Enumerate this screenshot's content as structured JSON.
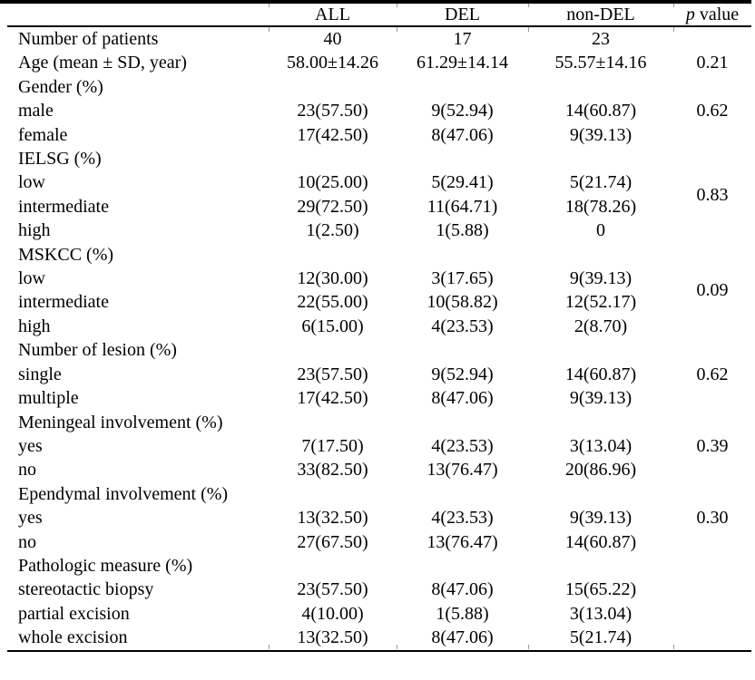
{
  "table": {
    "title_hint": "Patient characteristics table",
    "header": {
      "label": "",
      "all": "ALL",
      "del": "DEL",
      "nondel": "non-DEL",
      "p_symbol": "p",
      "p_rest": " value"
    },
    "rows": [
      {
        "label": "Number of patients",
        "all": "40",
        "del": "17",
        "nondel": "23",
        "p": ""
      },
      {
        "label": "Age (mean ± SD, year)",
        "all": "58.00±14.26",
        "del": "61.29±14.14",
        "nondel": "55.57±14.16",
        "p": "0.21"
      },
      {
        "label": "Gender (%)",
        "all": "",
        "del": "",
        "nondel": "",
        "p": "",
        "section": true
      },
      {
        "label": "male",
        "all": "23(57.50)",
        "del": "9(52.94)",
        "nondel": "14(60.87)",
        "p": "0.62"
      },
      {
        "label": "female",
        "all": "17(42.50)",
        "del": "8(47.06)",
        "nondel": "9(39.13)",
        "p": ""
      },
      {
        "label": "IELSG (%)",
        "all": "",
        "del": "",
        "nondel": "",
        "p": "",
        "section": true
      },
      {
        "label": "low",
        "all": "10(25.00)",
        "del": "5(29.41)",
        "nondel": "5(21.74)",
        "p": "0.83",
        "p_rowspan": 2
      },
      {
        "label": "intermediate",
        "all": "29(72.50)",
        "del": "11(64.71)",
        "nondel": "18(78.26)",
        "p_skip": true
      },
      {
        "label": "high",
        "all": "1(2.50)",
        "del": "1(5.88)",
        "nondel": "0",
        "p": ""
      },
      {
        "label": "MSKCC (%)",
        "all": "",
        "del": "",
        "nondel": "",
        "p": "",
        "section": true
      },
      {
        "label": "low",
        "all": "12(30.00)",
        "del": "3(17.65)",
        "nondel": "9(39.13)",
        "p": "0.09",
        "p_rowspan": 2
      },
      {
        "label": "intermediate",
        "all": "22(55.00)",
        "del": "10(58.82)",
        "nondel": "12(52.17)",
        "p_skip": true
      },
      {
        "label": "high",
        "all": "6(15.00)",
        "del": "4(23.53)",
        "nondel": "2(8.70)",
        "p": ""
      },
      {
        "label": "Number of lesion (%)",
        "all": "",
        "del": "",
        "nondel": "",
        "p": "",
        "section": true
      },
      {
        "label": "single",
        "all": "23(57.50)",
        "del": "9(52.94)",
        "nondel": "14(60.87)",
        "p": "0.62"
      },
      {
        "label": "multiple",
        "all": "17(42.50)",
        "del": "8(47.06)",
        "nondel": "9(39.13)",
        "p": ""
      },
      {
        "label": "Meningeal involvement (%)",
        "all": "",
        "del": "",
        "nondel": "",
        "p": "",
        "section": true
      },
      {
        "label": "yes",
        "all": "7(17.50)",
        "del": "4(23.53)",
        "nondel": "3(13.04)",
        "p": "0.39"
      },
      {
        "label": "no",
        "all": "33(82.50)",
        "del": "13(76.47)",
        "nondel": "20(86.96)",
        "p": ""
      },
      {
        "label": "Ependymal involvement (%)",
        "all": "",
        "del": "",
        "nondel": "",
        "p": "",
        "section": true
      },
      {
        "label": "yes",
        "all": "13(32.50)",
        "del": "4(23.53)",
        "nondel": "9(39.13)",
        "p": "0.30"
      },
      {
        "label": "no",
        "all": "27(67.50)",
        "del": "13(76.47)",
        "nondel": "14(60.87)",
        "p": ""
      },
      {
        "label": "Pathologic measure (%)",
        "all": "",
        "del": "",
        "nondel": "",
        "p": "",
        "section": true
      },
      {
        "label": "stereotactic biopsy",
        "all": "23(57.50)",
        "del": "8(47.06)",
        "nondel": "15(65.22)",
        "p": ""
      },
      {
        "label": "partial excision",
        "all": "4(10.00)",
        "del": "1(5.88)",
        "nondel": "3(13.04)",
        "p": ""
      },
      {
        "label": "whole excision",
        "all": "13(32.50)",
        "del": "8(47.06)",
        "nondel": "5(21.74)",
        "p": ""
      }
    ]
  }
}
